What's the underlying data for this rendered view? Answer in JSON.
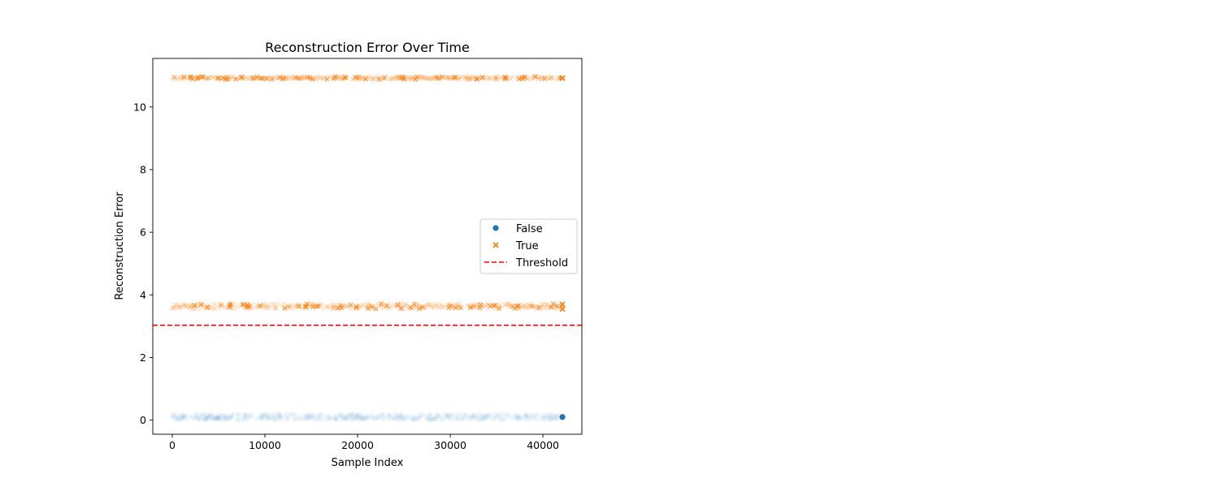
{
  "chart_data": {
    "type": "scatter",
    "title": "Reconstruction Error Over Time",
    "xlabel": "Sample Index",
    "ylabel": "Reconstruction Error",
    "xlim": [
      -2100,
      44200
    ],
    "ylim": [
      -0.45,
      11.55
    ],
    "xticks": [
      0,
      10000,
      20000,
      30000,
      40000
    ],
    "yticks": [
      0,
      2,
      4,
      6,
      8,
      10
    ],
    "x_range": [
      0,
      42100
    ],
    "grid": false,
    "legend_placement": "center-right",
    "threshold": {
      "label": "Threshold",
      "value": 3.03,
      "color": "#ff0000",
      "style": "dashed"
    },
    "series": [
      {
        "name": "False",
        "marker": "circle",
        "color": "#1f77b4",
        "bands": [
          {
            "y_min": 0.0,
            "y_max": 0.2
          }
        ],
        "highlight": {
          "x": 42100,
          "y": 0.1
        }
      },
      {
        "name": "True",
        "marker": "x",
        "color": "#ff7f0e",
        "bands": [
          {
            "y_min": 3.55,
            "y_max": 3.72
          },
          {
            "y_min": 10.88,
            "y_max": 10.97
          }
        ],
        "highlight": [
          {
            "x": 42100,
            "y": 3.7
          },
          {
            "x": 42100,
            "y": 3.55
          },
          {
            "x": 42100,
            "y": 10.92
          }
        ]
      }
    ]
  }
}
